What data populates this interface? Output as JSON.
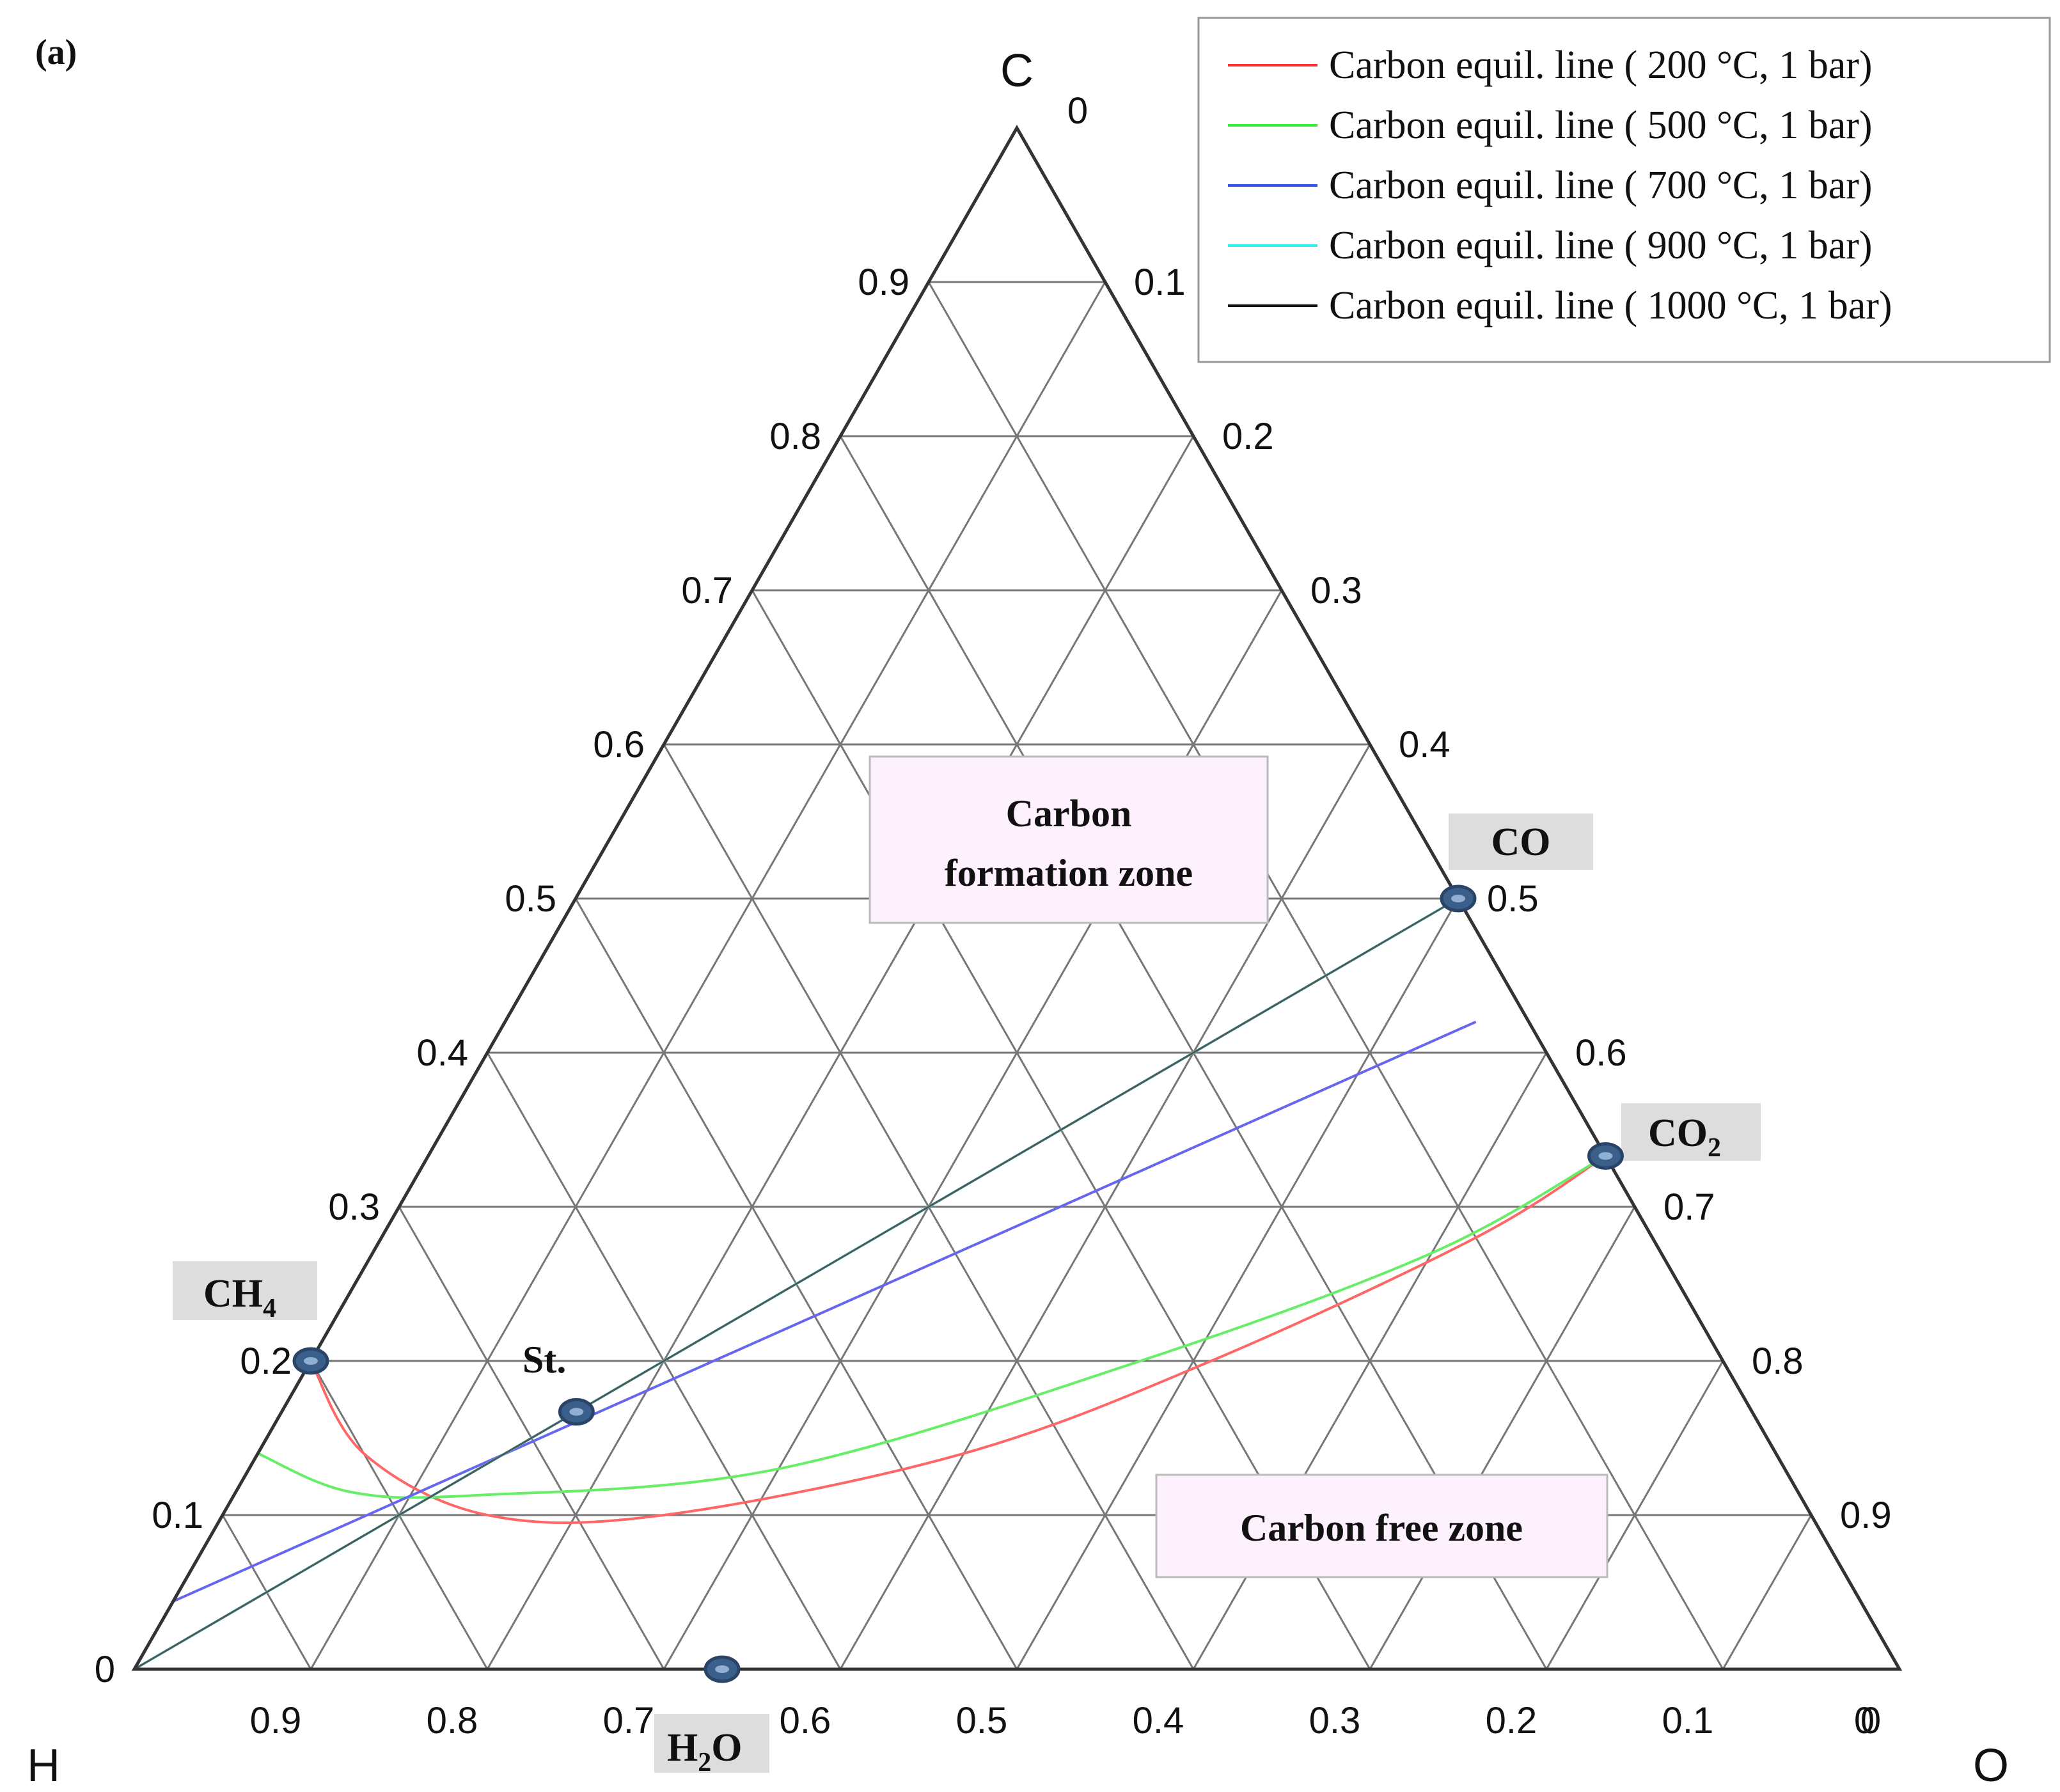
{
  "chart_data": {
    "type": "ternary",
    "panel_label": "(a)",
    "vertices": {
      "top": "C",
      "left": "H",
      "right": "O"
    },
    "ticks": {
      "left_edge_C": [
        "0",
        "0.1",
        "0.2",
        "0.3",
        "0.4",
        "0.5",
        "0.6",
        "0.7",
        "0.8",
        "0.9"
      ],
      "right_edge_O": [
        "0.1",
        "0.2",
        "0.3",
        "0.4",
        "0.5",
        "0.6",
        "0.7",
        "0.8",
        "0.9"
      ],
      "bottom_edge_H": [
        "0.9",
        "0.8",
        "0.7",
        "0.6",
        "0.5",
        "0.4",
        "0.3",
        "0.2",
        "0.1",
        "0"
      ],
      "top_zero": "0",
      "right_zero": "0"
    },
    "grid": true,
    "legend": {
      "position": "top-right",
      "entries": [
        {
          "label": "Carbon equil. line ( 200 °C, 1 bar)",
          "color": "#ff3333"
        },
        {
          "label": "Carbon equil. line ( 500 °C, 1 bar)",
          "color": "#33ee33"
        },
        {
          "label": "Carbon equil. line ( 700 °C, 1 bar)",
          "color": "#3355ee"
        },
        {
          "label": "Carbon equil. line ( 900 °C, 1 bar)",
          "color": "#33eeee"
        },
        {
          "label": "Carbon equil. line ( 1000 °C, 1 bar)",
          "color": "#111111"
        }
      ]
    },
    "series": [
      {
        "temperature": "200 °C",
        "color": "#ff6666",
        "points": [
          {
            "C": 0.2,
            "O": 0.0
          },
          {
            "C": 0.14,
            "O": 0.06
          },
          {
            "C": 0.1,
            "O": 0.15
          },
          {
            "C": 0.1,
            "O": 0.25
          },
          {
            "C": 0.14,
            "O": 0.4
          },
          {
            "C": 0.2,
            "O": 0.51
          },
          {
            "C": 0.28,
            "O": 0.62
          },
          {
            "C": 0.333,
            "O": 0.667
          }
        ]
      },
      {
        "temperature": "500 °C",
        "color": "#66ee66",
        "points": [
          {
            "C": 0.14,
            "O": 0.0
          },
          {
            "C": 0.115,
            "O": 0.065
          },
          {
            "C": 0.113,
            "O": 0.14
          },
          {
            "C": 0.13,
            "O": 0.3
          },
          {
            "C": 0.2,
            "O": 0.47
          },
          {
            "C": 0.27,
            "O": 0.6
          },
          {
            "C": 0.333,
            "O": 0.667
          }
        ]
      },
      {
        "temperature": "700 °C",
        "color": "#6666ee",
        "points": [
          {
            "C": 0.044,
            "O": 0.0
          },
          {
            "C": 0.42,
            "O": 0.55
          }
        ]
      },
      {
        "temperature": "900 °C",
        "color": "#55eeee",
        "points": [
          {
            "C": 0.0,
            "O": 0.0
          },
          {
            "C": 0.5,
            "O": 0.5
          }
        ]
      },
      {
        "temperature": "1000 °C",
        "color": "#555555",
        "points": [
          {
            "C": 0.0,
            "O": 0.0
          },
          {
            "C": 0.5,
            "O": 0.5
          }
        ]
      }
    ],
    "species_points": [
      {
        "label": "CH4",
        "base": "CH",
        "sub": "4",
        "C": 0.2,
        "O": 0.0
      },
      {
        "label": "St.",
        "base": "St.",
        "sub": "",
        "C": 0.167,
        "O": 0.167
      },
      {
        "label": "CO",
        "base": "CO",
        "sub": "",
        "C": 0.5,
        "O": 0.5
      },
      {
        "label": "CO2",
        "base": "CO",
        "sub": "2",
        "C": 0.333,
        "O": 0.667
      },
      {
        "label": "H2O",
        "base": "H",
        "sub": "2",
        "tail": "O",
        "C": 0.0,
        "O": 0.333
      }
    ],
    "zones": {
      "formation_line1": "Carbon",
      "formation_line2": "formation zone",
      "free": "Carbon free zone"
    }
  }
}
